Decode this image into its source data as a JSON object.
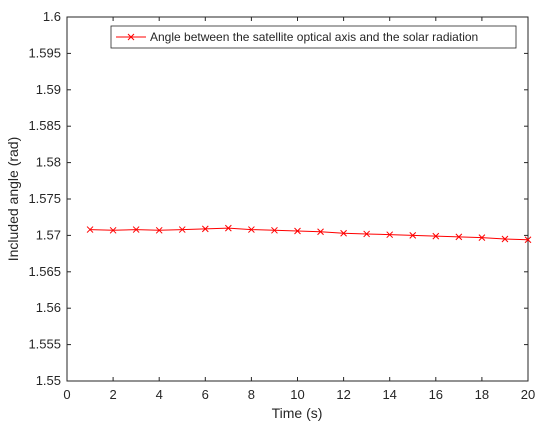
{
  "chart_data": {
    "type": "line",
    "title": "",
    "xlabel": "Time (s)",
    "ylabel": "Included angle (rad)",
    "xlim": [
      0,
      20
    ],
    "ylim": [
      1.55,
      1.6
    ],
    "x_ticks": [
      "0",
      "2",
      "4",
      "6",
      "8",
      "10",
      "12",
      "14",
      "16",
      "18",
      "20"
    ],
    "y_ticks": [
      "1.55",
      "1.555",
      "1.56",
      "1.565",
      "1.57",
      "1.575",
      "1.58",
      "1.585",
      "1.59",
      "1.595",
      "1.6"
    ],
    "grid": false,
    "legend_position": "top-right",
    "series": [
      {
        "name": "Angle between the satellite optical axis and the solar radiation",
        "color": "#ff0000",
        "marker": "x",
        "x": [
          1,
          2,
          3,
          4,
          5,
          6,
          7,
          8,
          9,
          10,
          11,
          12,
          13,
          14,
          15,
          16,
          17,
          18,
          19,
          20
        ],
        "y": [
          1.5708,
          1.5707,
          1.5708,
          1.5707,
          1.5708,
          1.5709,
          1.571,
          1.5708,
          1.5707,
          1.5706,
          1.5705,
          1.5703,
          1.5702,
          1.5701,
          1.57,
          1.5699,
          1.5698,
          1.5697,
          1.5695,
          1.5694
        ]
      }
    ]
  }
}
